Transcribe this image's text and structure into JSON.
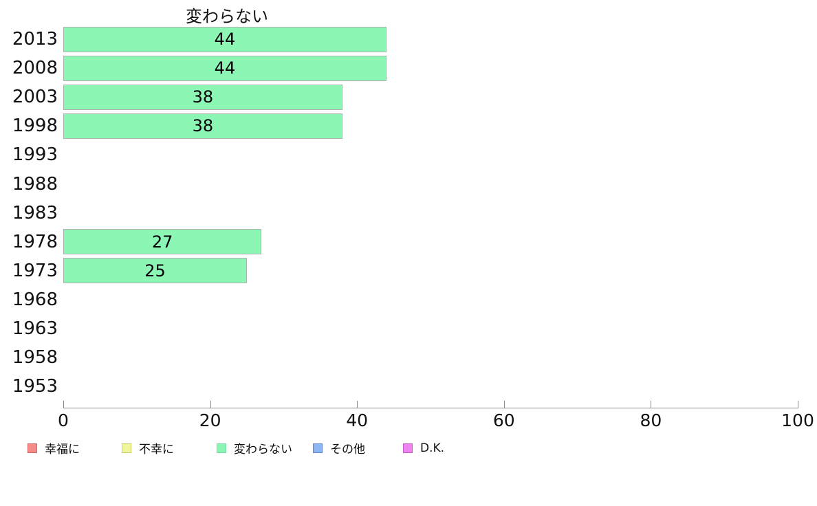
{
  "chart_data": {
    "type": "bar",
    "orientation": "horizontal",
    "title": "変わらない",
    "categories": [
      "2013",
      "2008",
      "2003",
      "1998",
      "1993",
      "1988",
      "1983",
      "1978",
      "1973",
      "1968",
      "1963",
      "1958",
      "1953"
    ],
    "values": [
      44,
      44,
      38,
      38,
      null,
      null,
      null,
      27,
      25,
      null,
      null,
      null,
      null
    ],
    "xlabel": "",
    "ylabel": "",
    "xlim": [
      0,
      100
    ],
    "x_ticks": [
      0,
      20,
      40,
      60,
      80,
      100
    ],
    "grid": "off",
    "bar_fill_color": "#8cf6b5",
    "bar_border_color": "#b0b0b0",
    "axis_color": "#888888",
    "legend_position": "bottom"
  },
  "legend": {
    "items": [
      {
        "label": "幸福に",
        "color": "#f58c8c",
        "border": "#e05f5f"
      },
      {
        "label": "不幸に",
        "color": "#f1f69b",
        "border": "#c8ce67"
      },
      {
        "label": "変わらない",
        "color": "#8cf6b5",
        "border": "#72d99e"
      },
      {
        "label": "その他",
        "color": "#8fb6f2",
        "border": "#5e86d6"
      },
      {
        "label": "D.K.",
        "color": "#ee85ee",
        "border": "#c55bc5"
      }
    ]
  }
}
